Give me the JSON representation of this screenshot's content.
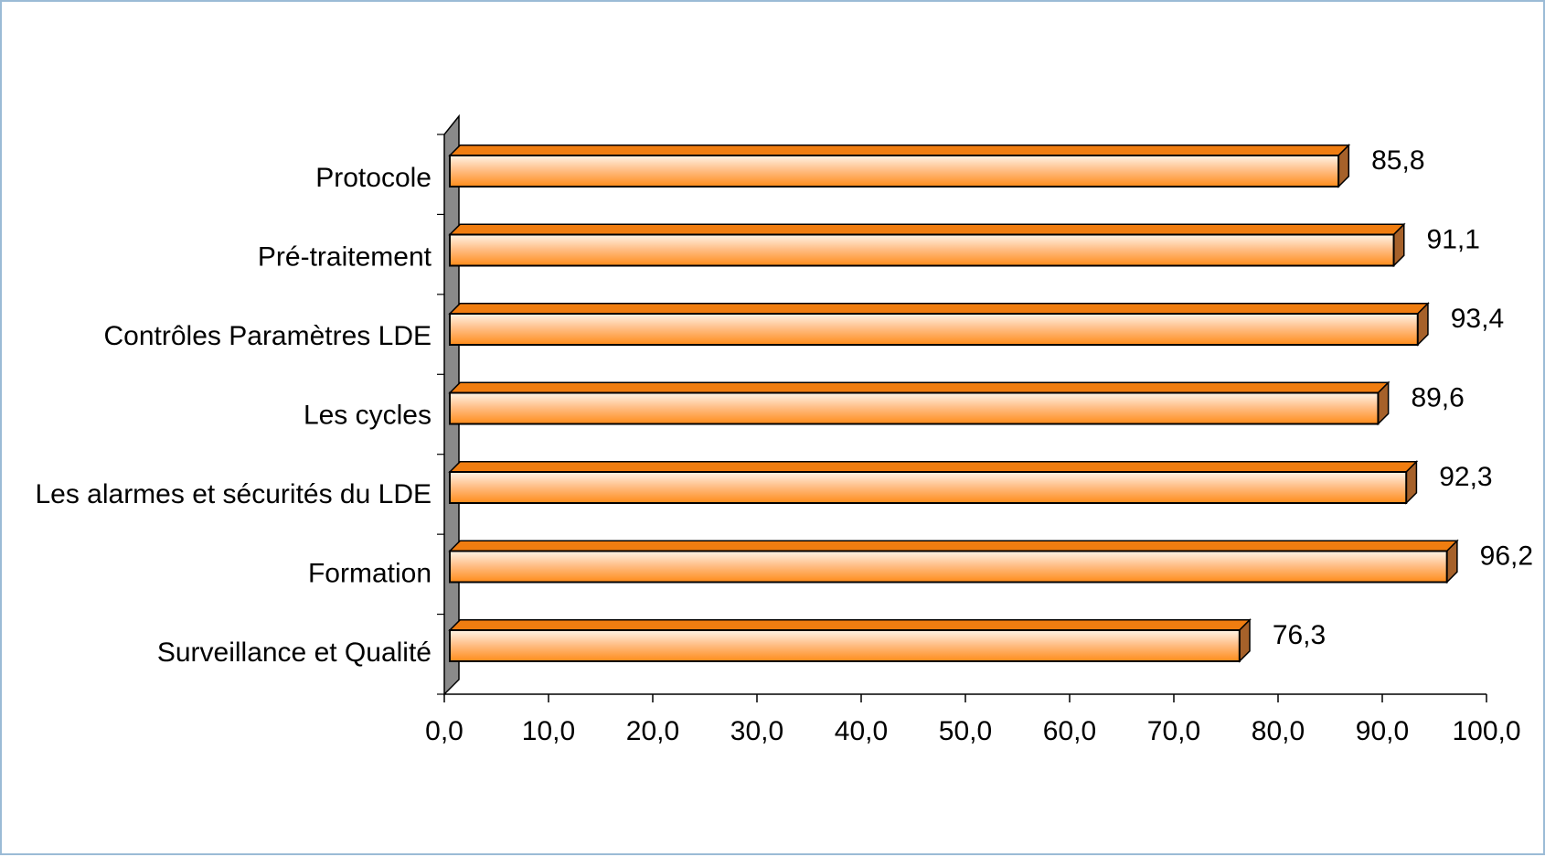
{
  "chart_data": {
    "type": "bar",
    "orientation": "horizontal",
    "categories": [
      "Protocole",
      "Pré-traitement",
      "Contrôles Paramètres LDE",
      "Les cycles",
      "Les alarmes et sécurités du LDE",
      "Formation",
      "Surveillance et Qualité"
    ],
    "values": [
      85.8,
      91.1,
      93.4,
      89.6,
      92.3,
      96.2,
      76.3
    ],
    "data_labels": [
      "85,8",
      "91,1",
      "93,4",
      "89,6",
      "92,3",
      "96,2",
      "76,3"
    ],
    "xlim": [
      0,
      100
    ],
    "xticks": [
      0,
      10,
      20,
      30,
      40,
      50,
      60,
      70,
      80,
      90,
      100
    ],
    "xtick_labels": [
      "0,0",
      "10,0",
      "20,0",
      "30,0",
      "40,0",
      "50,0",
      "60,0",
      "70,0",
      "80,0",
      "90,0",
      "100,0"
    ],
    "title": "",
    "xlabel": "",
    "ylabel": "",
    "grid": false,
    "legend": "none",
    "style": "3d",
    "colors": {
      "bar_light": "#fff4e6",
      "bar_mid": "#ffc08a",
      "bar_dark": "#ff8c1a",
      "bar_top": "#f07d10",
      "bar_side": "#a6612a",
      "wall": "#8a8a8a",
      "frame_border": "#9bbbd6"
    }
  }
}
